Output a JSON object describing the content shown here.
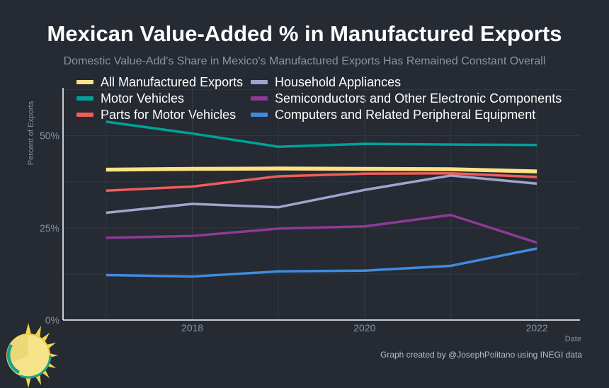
{
  "chart_data": {
    "type": "line",
    "title": "Mexican Value-Added % in Manufactured Exports",
    "subtitle": "Domestic Value-Add's Share in Mexico's Manufactured Exports Has Remained Constant Overall",
    "xlabel": "Date",
    "ylabel": "Percent of Exports",
    "x": [
      2017,
      2018,
      2019,
      2020,
      2021,
      2022
    ],
    "xlim": [
      2016.5,
      2022.5
    ],
    "ylim": [
      0,
      63
    ],
    "x_ticks": [
      2018,
      2020,
      2022
    ],
    "x_tick_labels": [
      "2018",
      "2020",
      "2022"
    ],
    "y_ticks": [
      0,
      25,
      50
    ],
    "y_tick_labels": [
      "0%",
      "25%",
      "50%"
    ],
    "grid": true,
    "series": [
      {
        "name": "Motor Vehicles",
        "color": "#00a19a",
        "values": [
          53.8,
          50.6,
          47.0,
          47.8,
          47.6,
          47.5
        ]
      },
      {
        "name": "Computers and Related Peripheral Equipment",
        "color": "#3f8be0",
        "values": [
          12.2,
          11.8,
          13.2,
          13.4,
          14.7,
          19.4
        ]
      },
      {
        "name": "Semiconductors and Other Electronic Components",
        "color": "#8e3a96",
        "values": [
          22.3,
          22.8,
          24.8,
          25.4,
          28.5,
          21.0
        ]
      },
      {
        "name": "Household Appliances",
        "color": "#9fa5cf",
        "values": [
          29.1,
          31.5,
          30.6,
          35.3,
          39.2,
          37.0
        ]
      },
      {
        "name": "Parts for Motor Vehicles",
        "color": "#ed5e59",
        "values": [
          35.1,
          36.2,
          39.0,
          39.7,
          39.8,
          38.8
        ]
      },
      {
        "name": "All Manufactured Exports",
        "color": "#ffe284",
        "values": [
          40.8,
          41.0,
          41.1,
          41.0,
          40.9,
          40.3
        ]
      }
    ],
    "legend": [
      {
        "name": "All Manufactured Exports",
        "color": "#ffe284"
      },
      {
        "name": "Motor Vehicles",
        "color": "#00a19a"
      },
      {
        "name": "Parts for Motor Vehicles",
        "color": "#ed5e59"
      },
      {
        "name": "Household Appliances",
        "color": "#9fa5cf"
      },
      {
        "name": "Semiconductors and Other Electronic Components",
        "color": "#8e3a96"
      },
      {
        "name": "Computers and Related Peripheral Equipment",
        "color": "#3f8be0"
      }
    ],
    "legend_placement": "top"
  },
  "caption": "Graph created by @JosephPolitano using INEGI data",
  "colors": {
    "background": "#252a33",
    "grid": "#353b45",
    "axis": "#ffffff",
    "tick_text": "#8d939c"
  }
}
